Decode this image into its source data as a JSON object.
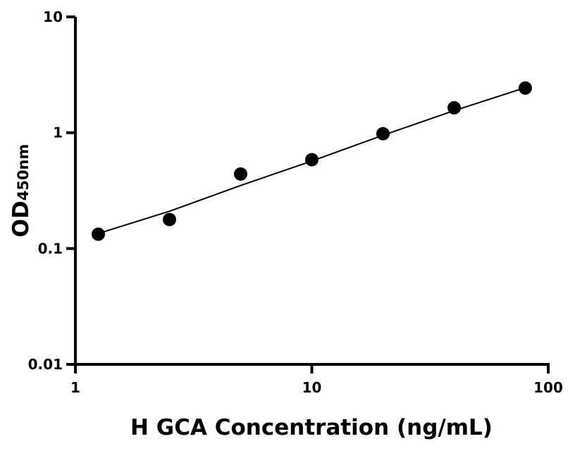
{
  "chart_data": {
    "type": "scatter",
    "title": "",
    "xlabel": "H GCA Concentration (ng/mL)",
    "ylabel_main": "OD",
    "ylabel_sub": "450nm",
    "x_scale": "log",
    "y_scale": "log",
    "xlim": [
      1,
      100
    ],
    "ylim": [
      0.01,
      10
    ],
    "x_ticks": [
      {
        "value": 1,
        "label": "1"
      },
      {
        "value": 10,
        "label": "10"
      },
      {
        "value": 100,
        "label": "100"
      }
    ],
    "y_ticks": [
      {
        "value": 0.01,
        "label": "0.01"
      },
      {
        "value": 0.1,
        "label": "0.1"
      },
      {
        "value": 1,
        "label": "1"
      },
      {
        "value": 10,
        "label": "10"
      }
    ],
    "grid": false,
    "series": [
      {
        "x": [
          1.25,
          2.5,
          5,
          10,
          20,
          40,
          80
        ],
        "y": [
          0.133,
          0.178,
          0.44,
          0.585,
          0.98,
          1.64,
          2.43
        ],
        "marker": "circle",
        "color": "#000000"
      }
    ],
    "fit_curve": {
      "x": [
        1.25,
        2.5,
        5,
        10,
        20,
        40,
        80
      ],
      "y": [
        0.135,
        0.21,
        0.35,
        0.57,
        0.95,
        1.55,
        2.45
      ],
      "color": "#000000"
    }
  }
}
